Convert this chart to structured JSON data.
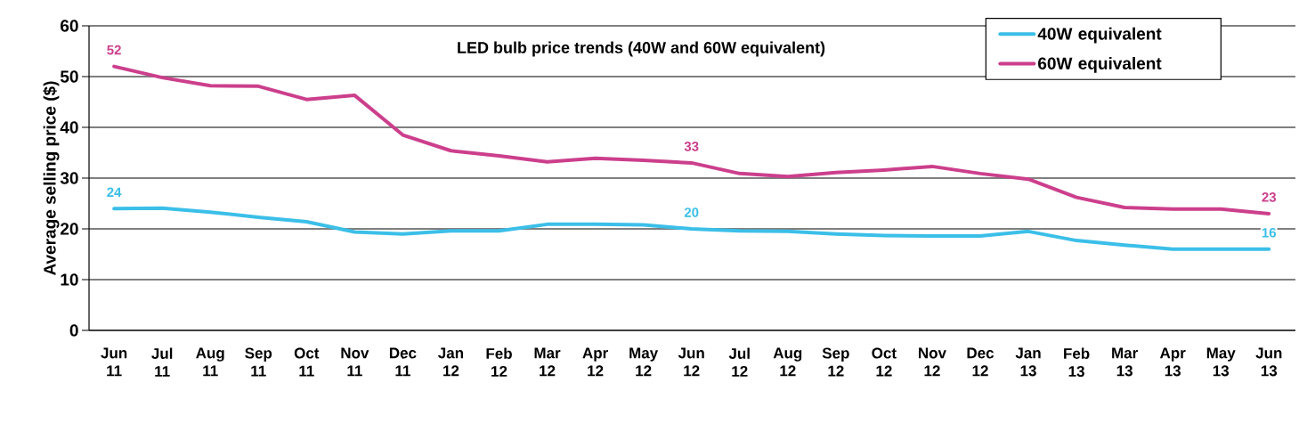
{
  "chart_data": {
    "type": "line",
    "title": "LED bulb price trends (40W and 60W equivalent)",
    "ylabel": "Average selling price ($)",
    "categories": [
      "Jun 11",
      "Jul 11",
      "Aug 11",
      "Sep 11",
      "Oct 11",
      "Nov 11",
      "Dec 11",
      "Jan 12",
      "Feb 12",
      "Mar 12",
      "Apr 12",
      "May 12",
      "Jun 12",
      "Jul 12",
      "Aug 12",
      "Sep 12",
      "Oct 12",
      "Nov 12",
      "Dec 12",
      "Jan 13",
      "Feb 13",
      "Mar 13",
      "Apr 13",
      "May 13",
      "Jun 13"
    ],
    "series": [
      {
        "name": "40W equivalent",
        "color": "#3bbfe8",
        "values": [
          24,
          24.1,
          23.3,
          22.3,
          21.4,
          19.4,
          19.0,
          19.6,
          19.6,
          20.9,
          20.9,
          20.8,
          20,
          19.6,
          19.5,
          19.0,
          18.7,
          18.6,
          18.6,
          19.5,
          17.7,
          16.8,
          16.0,
          16.0,
          16
        ],
        "value_labels": [
          "24",
          null,
          null,
          null,
          null,
          null,
          null,
          null,
          null,
          null,
          null,
          null,
          "20",
          null,
          null,
          null,
          null,
          null,
          null,
          null,
          null,
          null,
          null,
          null,
          "16"
        ]
      },
      {
        "name": "60W equivalent",
        "color": "#cc3f8c",
        "values": [
          52,
          49.8,
          48.2,
          48.1,
          45.5,
          46.3,
          38.5,
          35.4,
          34.4,
          33.2,
          33.9,
          33.5,
          33,
          30.9,
          30.3,
          31.1,
          31.6,
          32.3,
          30.9,
          29.8,
          26.2,
          24.2,
          23.9,
          23.9,
          23
        ],
        "value_labels": [
          "52",
          null,
          null,
          null,
          null,
          null,
          null,
          null,
          null,
          null,
          null,
          null,
          "33",
          null,
          null,
          null,
          null,
          null,
          null,
          null,
          null,
          null,
          null,
          null,
          "23"
        ]
      }
    ],
    "ylim": [
      0,
      60
    ],
    "yticks": [
      0,
      10,
      20,
      30,
      40,
      50,
      60
    ],
    "grid": "y",
    "legend": "top right"
  }
}
